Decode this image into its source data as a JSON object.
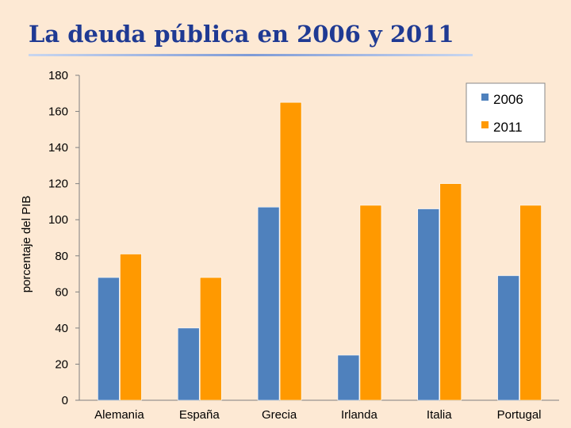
{
  "chart_data": {
    "type": "bar",
    "title": "La deuda pública en 2006 y 2011",
    "ylabel": "porcentaje del PIB",
    "xlabel": "",
    "categories": [
      "Alemania",
      "España",
      "Grecia",
      "Irlanda",
      "Italia",
      "Portugal"
    ],
    "series": [
      {
        "name": "2006",
        "color": "#4f81bd",
        "values": [
          68,
          40,
          107,
          25,
          106,
          69
        ]
      },
      {
        "name": "2011",
        "color": "#ff9900",
        "values": [
          81,
          68,
          165,
          108,
          120,
          108
        ]
      }
    ],
    "ylim": [
      0,
      180
    ],
    "yticks": [
      0,
      20,
      40,
      60,
      80,
      100,
      120,
      140,
      160,
      180
    ],
    "legend": "top-right",
    "grid": false
  }
}
